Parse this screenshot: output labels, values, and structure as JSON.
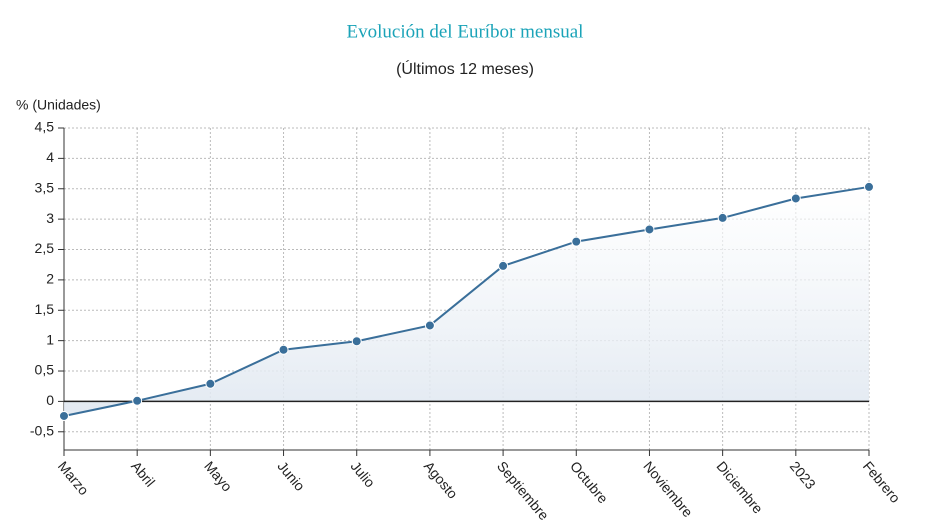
{
  "chart_data": {
    "type": "area",
    "title": "Evolución del Euríbor mensual",
    "subtitle": "(Últimos 12 meses)",
    "y_label": "% (Unidades)",
    "categories": [
      "Marzo",
      "Abril",
      "Mayo",
      "Junio",
      "Julio",
      "Agosto",
      "Septiembre",
      "Octubre",
      "Noviembre",
      "Diciembre",
      "2023",
      "Febrero"
    ],
    "values": [
      -0.24,
      0.01,
      0.29,
      0.85,
      0.99,
      1.25,
      2.23,
      2.63,
      2.83,
      3.02,
      3.34,
      3.53
    ],
    "color": "#3a6f9a",
    "ylim": [
      -0.8,
      4.5
    ],
    "yticks": [
      {
        "value": -0.5,
        "label": "-0,5"
      },
      0,
      {
        "value": 0.5,
        "label": "0,5"
      },
      1,
      {
        "value": 1.5,
        "label": "1,5"
      },
      2,
      {
        "value": 2.5,
        "label": "2,5"
      },
      3,
      {
        "value": 3.5,
        "label": "3,5"
      },
      4,
      {
        "value": 4.5,
        "label": "4,5"
      }
    ],
    "grid": true
  }
}
